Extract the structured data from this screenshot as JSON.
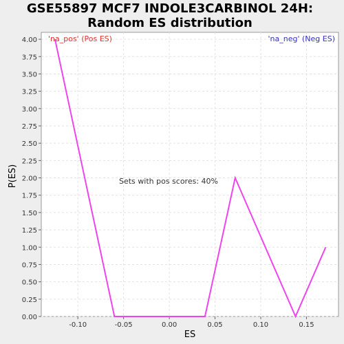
{
  "title": [
    "GSE55897 MCF7 INDOLE3CARBINOL 24H:",
    "Random ES distribution"
  ],
  "chart_data": {
    "type": "line",
    "xlabel": "ES",
    "ylabel": "P(ES)",
    "xlim": [
      -0.14,
      0.185
    ],
    "ylim": [
      0,
      4.1
    ],
    "x_ticks": [
      -0.1,
      -0.05,
      0.0,
      0.05,
      0.1,
      0.15
    ],
    "x_tick_labels": [
      "-0.10",
      "-0.05",
      "0.00",
      "0.05",
      "0.10",
      "0.15"
    ],
    "y_ticks": [
      0,
      0.25,
      0.5,
      0.75,
      1.0,
      1.25,
      1.5,
      1.75,
      2.0,
      2.25,
      2.5,
      2.75,
      3.0,
      3.25,
      3.5,
      3.75,
      4.0
    ],
    "y_tick_labels": [
      "0.00",
      "0.25",
      "0.50",
      "0.75",
      "1.00",
      "1.25",
      "1.50",
      "1.75",
      "2.00",
      "2.25",
      "2.50",
      "2.75",
      "3.00",
      "3.25",
      "3.50",
      "3.75",
      "4.00"
    ],
    "grid": true,
    "series": [
      {
        "color": "#ee44ee",
        "x": [
          -0.125,
          -0.06,
          -0.03,
          0.0,
          0.039,
          0.072,
          0.138,
          0.171
        ],
        "y": [
          4.0,
          0.0,
          0.0,
          0.0,
          0.0,
          2.0,
          0.0,
          1.0
        ]
      }
    ],
    "annotations": {
      "pos_label": "'na_pos' (Pos ES)",
      "pos_color": "#dd3333",
      "neg_label": "'na_neg' (Neg ES)",
      "neg_color": "#3333bb",
      "center_text": "Sets with pos scores: 40%"
    }
  }
}
